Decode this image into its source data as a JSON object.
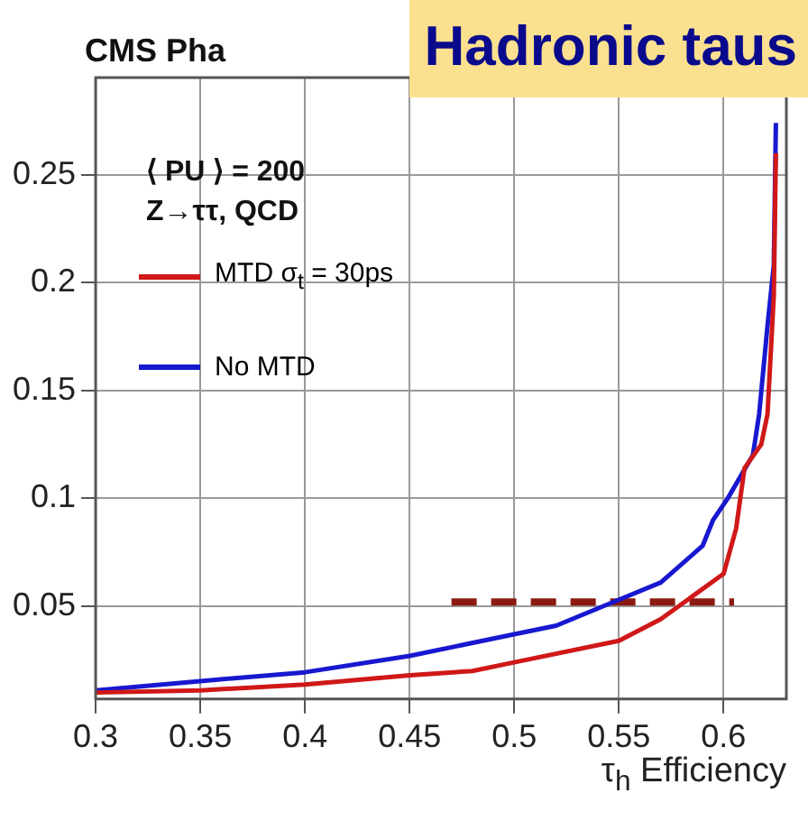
{
  "chart_data": {
    "type": "line",
    "title": "Hadronic taus",
    "xlabel": "τ$_{h}$ Efficiency",
    "annotations": [
      "CMS Pha",
      "⟨ PU ⟩ = 200",
      "Z→ττ, QCD"
    ],
    "xlim": [
      0.3,
      0.63
    ],
    "ylim": [
      0.007,
      0.295
    ],
    "xticks": [
      0.3,
      0.35,
      0.4,
      0.45,
      0.5,
      0.55,
      0.6
    ],
    "yticks": [
      0.05,
      0.1,
      0.15,
      0.2,
      0.25
    ],
    "grid": true,
    "legend": "top left",
    "marker": "none",
    "series": [
      {
        "name": "MTD σ$_{t}$ = 30ps",
        "color": "#d01818",
        "x": [
          0.3,
          0.35,
          0.4,
          0.45,
          0.48,
          0.5,
          0.55,
          0.57,
          0.6,
          0.606,
          0.61,
          0.618,
          0.621,
          0.624,
          0.625
        ],
        "values": [
          0.01,
          0.011,
          0.0137,
          0.018,
          0.02,
          0.024,
          0.034,
          0.044,
          0.065,
          0.086,
          0.114,
          0.125,
          0.139,
          0.194,
          0.26
        ]
      },
      {
        "name": "No MTD",
        "color": "#1818d0",
        "x": [
          0.3,
          0.35,
          0.4,
          0.45,
          0.5,
          0.52,
          0.55,
          0.57,
          0.59,
          0.595,
          0.602,
          0.614,
          0.617,
          0.621,
          0.624,
          0.625
        ],
        "values": [
          0.011,
          0.0153,
          0.0194,
          0.027,
          0.037,
          0.041,
          0.053,
          0.061,
          0.078,
          0.09,
          0.1,
          0.12,
          0.139,
          0.18,
          0.208,
          0.274
        ]
      },
      {
        "color": "#8b1a10",
        "line_style": "dashed",
        "x": [
          0.47,
          0.605
        ],
        "values": [
          0.052,
          0.052
        ]
      }
    ]
  }
}
